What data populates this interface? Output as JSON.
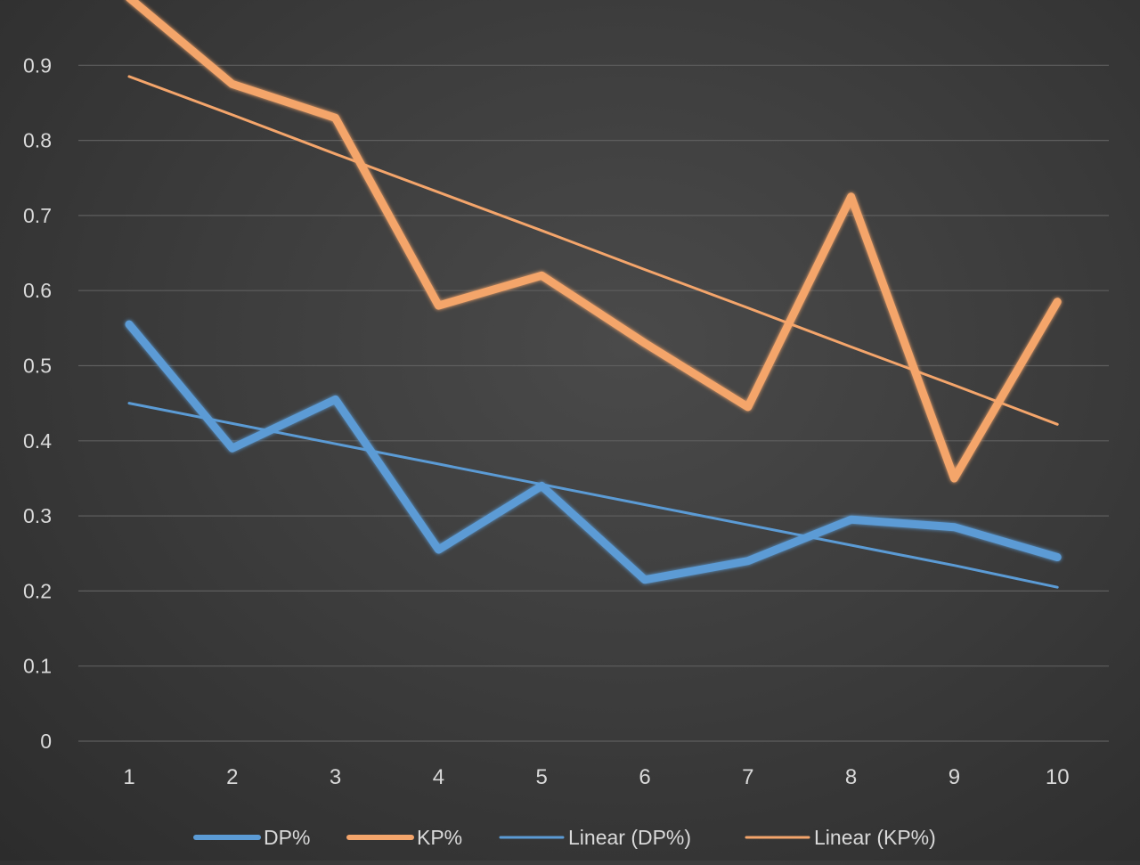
{
  "chart_data": {
    "type": "line",
    "title": "",
    "xlabel": "",
    "ylabel": "",
    "categories": [
      "1",
      "2",
      "3",
      "4",
      "5",
      "6",
      "7",
      "8",
      "9",
      "10"
    ],
    "ylim": [
      0,
      0.98
    ],
    "yticks": [
      "0",
      "0.1",
      "0.2",
      "0.3",
      "0.4",
      "0.5",
      "0.6",
      "0.7",
      "0.8",
      "0.9"
    ],
    "grid": true,
    "legend_position": "bottom",
    "series": [
      {
        "name": "DP%",
        "color": "#5b9bd5",
        "style": "thick",
        "values": [
          0.555,
          0.39,
          0.455,
          0.255,
          0.34,
          0.215,
          0.24,
          0.295,
          0.285,
          0.245
        ]
      },
      {
        "name": "KP%",
        "color": "#f4a56b",
        "style": "thick",
        "values": [
          0.99,
          0.875,
          0.83,
          0.58,
          0.62,
          0.53,
          0.445,
          0.725,
          0.35,
          0.585
        ]
      },
      {
        "name": "Linear (DP%)",
        "color": "#5b9bd5",
        "style": "thin",
        "values": [
          0.45,
          0.423,
          0.396,
          0.369,
          0.342,
          0.315,
          0.288,
          0.261,
          0.234,
          0.205
        ]
      },
      {
        "name": "Linear (KP%)",
        "color": "#f4a56b",
        "style": "thin",
        "values": [
          0.885,
          0.834,
          0.782,
          0.731,
          0.68,
          0.628,
          0.577,
          0.525,
          0.474,
          0.422
        ]
      }
    ]
  }
}
